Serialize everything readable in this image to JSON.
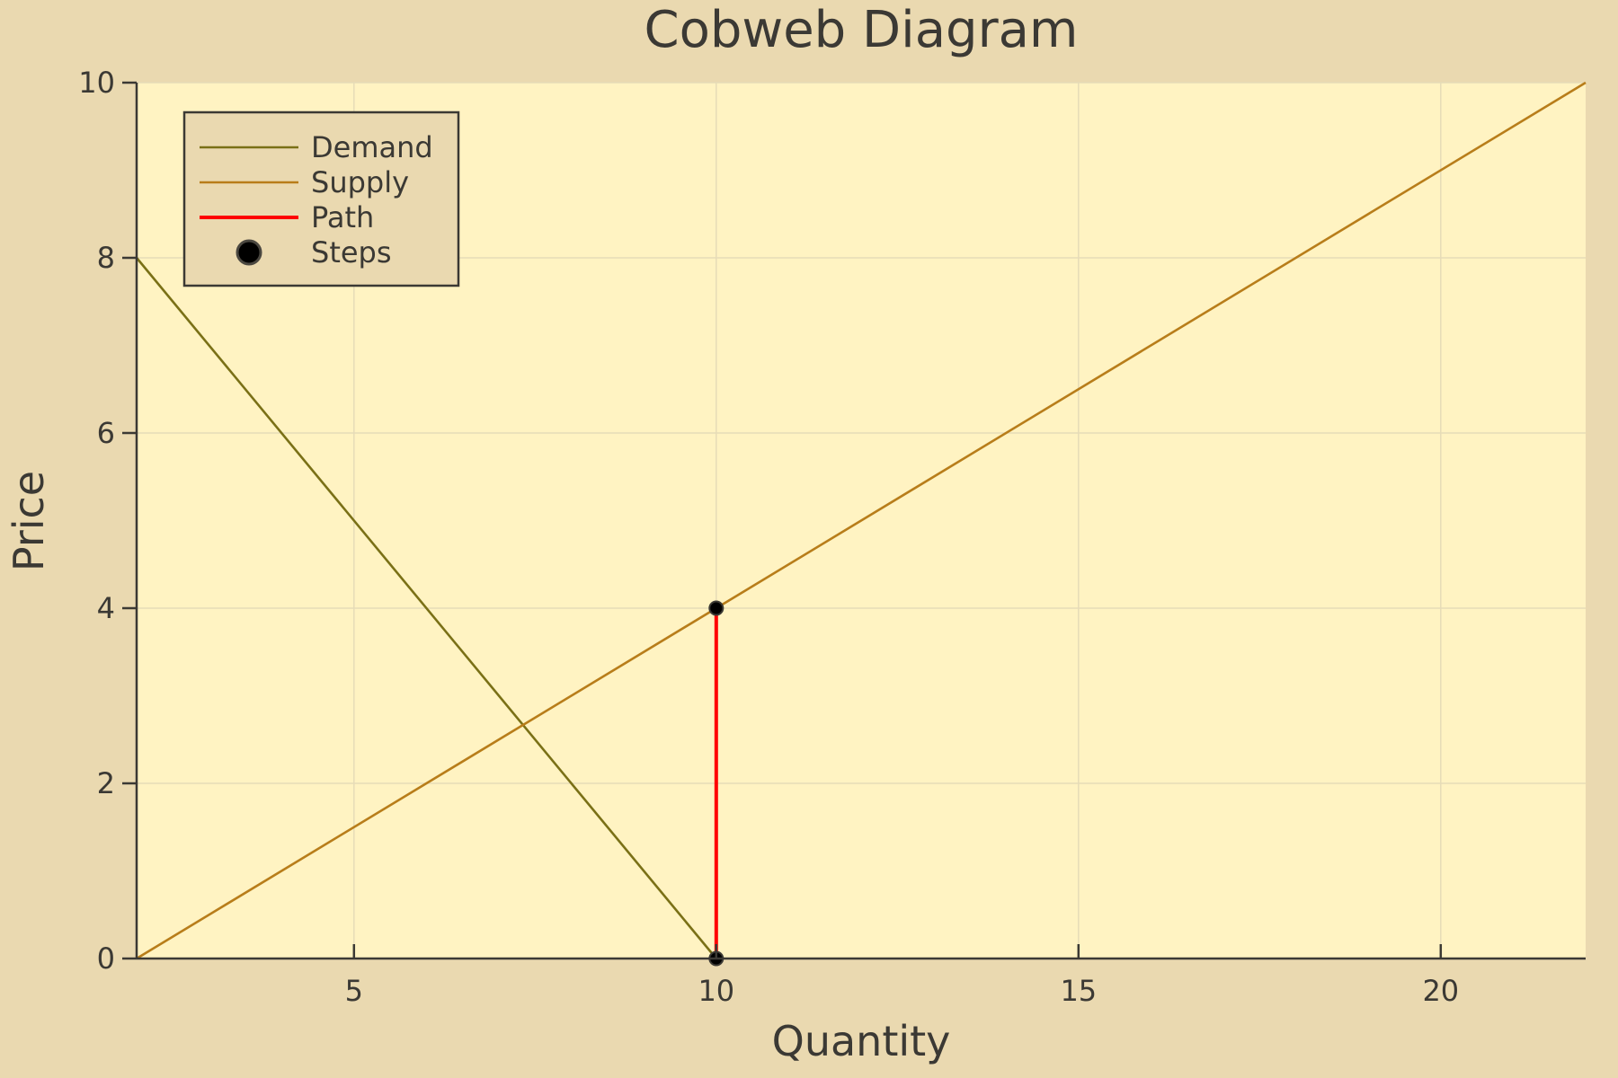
{
  "colors": {
    "background": "#ead9b0",
    "plot_area": "#fff3c2",
    "axis": "#3b3934",
    "grid": "#e6dcb8",
    "demand": "#7a7016",
    "supply": "#b87d1a",
    "path": "#ff0000",
    "steps": "#000000",
    "legend_bg": "#ead9b0"
  },
  "chart_data": {
    "type": "line",
    "title": "Cobweb Diagram",
    "xlabel": "Quantity",
    "ylabel": "Price",
    "xlim": [
      2,
      22
    ],
    "ylim": [
      0,
      10
    ],
    "xticks": [
      5,
      10,
      15,
      20
    ],
    "yticks": [
      0,
      2,
      4,
      6,
      8,
      10
    ],
    "grid": true,
    "legend_position": "top-left",
    "series": [
      {
        "name": "Demand",
        "kind": "line",
        "x": [
          2,
          10
        ],
        "y": [
          8,
          0
        ]
      },
      {
        "name": "Supply",
        "kind": "line",
        "x": [
          2,
          22
        ],
        "y": [
          0,
          10
        ]
      },
      {
        "name": "Path",
        "kind": "line",
        "x": [
          10,
          10
        ],
        "y": [
          0,
          4
        ]
      },
      {
        "name": "Steps",
        "kind": "scatter",
        "x": [
          10,
          10
        ],
        "y": [
          0,
          4
        ]
      }
    ]
  }
}
